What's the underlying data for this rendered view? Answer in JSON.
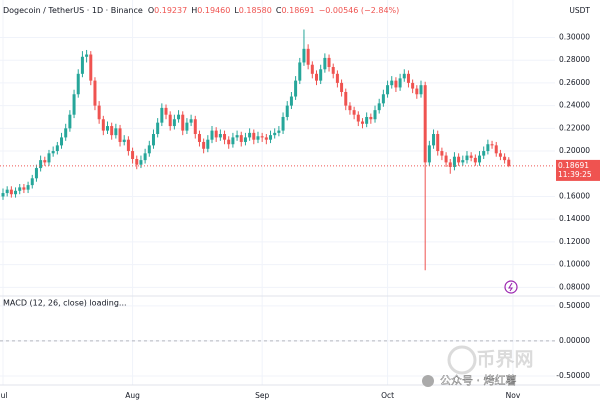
{
  "chart_data": {
    "type": "candlestick",
    "title": "Dogecoin / TetherUS · 1D · Binance",
    "quote": [
      {
        "label": "O",
        "value": "0.19237"
      },
      {
        "label": "H",
        "value": "0.19460"
      },
      {
        "label": "L",
        "value": "0.18580"
      },
      {
        "label": "C",
        "value": "0.18691"
      }
    ],
    "change": "−0.00546 (−2.84%)",
    "currency": "USDT",
    "countdown": "11:39:25",
    "up_color": "#26a69a",
    "down_color": "#ef5350",
    "categories": [
      "Jul",
      null,
      null,
      null,
      null,
      null,
      null,
      null,
      null,
      null,
      null,
      null,
      null,
      null,
      null,
      null,
      null,
      null,
      null,
      null,
      null,
      null,
      null,
      null,
      null,
      null,
      null,
      null,
      null,
      null,
      null,
      "Aug",
      null,
      null,
      null,
      null,
      null,
      null,
      null,
      null,
      null,
      null,
      null,
      null,
      null,
      null,
      null,
      null,
      null,
      null,
      null,
      null,
      null,
      null,
      null,
      null,
      null,
      null,
      null,
      null,
      null,
      null,
      "Sep",
      null,
      null,
      null,
      null,
      null,
      null,
      null,
      null,
      null,
      null,
      null,
      null,
      null,
      null,
      null,
      null,
      null,
      null,
      null,
      null,
      null,
      null,
      null,
      null,
      null,
      null,
      null,
      null,
      null,
      "Oct",
      null,
      null,
      null,
      null,
      null,
      null,
      null,
      null,
      null,
      null,
      null,
      null,
      null,
      null,
      null,
      null,
      null,
      null,
      null,
      null,
      null,
      null,
      null,
      null,
      null,
      null,
      null,
      null,
      null,
      "Nov"
    ],
    "ohlc": [
      [
        0.16,
        0.167,
        0.157,
        0.163
      ],
      [
        0.163,
        0.169,
        0.16,
        0.166
      ],
      [
        0.166,
        0.169,
        0.159,
        0.162
      ],
      [
        0.162,
        0.168,
        0.159,
        0.165
      ],
      [
        0.165,
        0.171,
        0.162,
        0.168
      ],
      [
        0.168,
        0.171,
        0.163,
        0.166
      ],
      [
        0.166,
        0.173,
        0.163,
        0.17
      ],
      [
        0.17,
        0.179,
        0.167,
        0.176
      ],
      [
        0.176,
        0.188,
        0.173,
        0.185
      ],
      [
        0.185,
        0.196,
        0.182,
        0.192
      ],
      [
        0.192,
        0.195,
        0.187,
        0.19
      ],
      [
        0.19,
        0.201,
        0.187,
        0.198
      ],
      [
        0.198,
        0.204,
        0.195,
        0.2
      ],
      [
        0.2,
        0.208,
        0.197,
        0.205
      ],
      [
        0.205,
        0.216,
        0.202,
        0.212
      ],
      [
        0.212,
        0.224,
        0.209,
        0.22
      ],
      [
        0.22,
        0.236,
        0.217,
        0.232
      ],
      [
        0.232,
        0.254,
        0.229,
        0.25
      ],
      [
        0.25,
        0.272,
        0.247,
        0.268
      ],
      [
        0.268,
        0.288,
        0.265,
        0.283
      ],
      [
        0.283,
        0.289,
        0.278,
        0.285
      ],
      [
        0.285,
        0.288,
        0.258,
        0.262
      ],
      [
        0.262,
        0.265,
        0.236,
        0.24
      ],
      [
        0.24,
        0.244,
        0.224,
        0.228
      ],
      [
        0.228,
        0.231,
        0.214,
        0.218
      ],
      [
        0.218,
        0.226,
        0.215,
        0.222
      ],
      [
        0.222,
        0.225,
        0.21,
        0.214
      ],
      [
        0.214,
        0.224,
        0.211,
        0.22
      ],
      [
        0.22,
        0.223,
        0.204,
        0.208
      ],
      [
        0.208,
        0.214,
        0.205,
        0.21
      ],
      [
        0.21,
        0.213,
        0.196,
        0.2
      ],
      [
        0.2,
        0.203,
        0.189,
        0.193
      ],
      [
        0.193,
        0.196,
        0.184,
        0.188
      ],
      [
        0.188,
        0.196,
        0.185,
        0.192
      ],
      [
        0.192,
        0.202,
        0.189,
        0.198
      ],
      [
        0.198,
        0.209,
        0.195,
        0.205
      ],
      [
        0.205,
        0.219,
        0.202,
        0.215
      ],
      [
        0.215,
        0.229,
        0.212,
        0.225
      ],
      [
        0.225,
        0.242,
        0.222,
        0.238
      ],
      [
        0.238,
        0.241,
        0.228,
        0.232
      ],
      [
        0.232,
        0.235,
        0.218,
        0.222
      ],
      [
        0.222,
        0.232,
        0.219,
        0.228
      ],
      [
        0.228,
        0.236,
        0.225,
        0.232
      ],
      [
        0.232,
        0.235,
        0.214,
        0.218
      ],
      [
        0.218,
        0.229,
        0.215,
        0.225
      ],
      [
        0.225,
        0.232,
        0.222,
        0.228
      ],
      [
        0.228,
        0.231,
        0.211,
        0.215
      ],
      [
        0.215,
        0.218,
        0.204,
        0.208
      ],
      [
        0.208,
        0.211,
        0.198,
        0.202
      ],
      [
        0.202,
        0.214,
        0.199,
        0.21
      ],
      [
        0.21,
        0.222,
        0.207,
        0.218
      ],
      [
        0.218,
        0.221,
        0.208,
        0.212
      ],
      [
        0.212,
        0.219,
        0.209,
        0.215
      ],
      [
        0.215,
        0.218,
        0.206,
        0.21
      ],
      [
        0.21,
        0.213,
        0.202,
        0.206
      ],
      [
        0.206,
        0.216,
        0.203,
        0.212
      ],
      [
        0.212,
        0.218,
        0.209,
        0.214
      ],
      [
        0.214,
        0.217,
        0.204,
        0.208
      ],
      [
        0.208,
        0.216,
        0.205,
        0.212
      ],
      [
        0.212,
        0.22,
        0.209,
        0.216
      ],
      [
        0.216,
        0.219,
        0.206,
        0.21
      ],
      [
        0.21,
        0.217,
        0.207,
        0.213
      ],
      [
        0.213,
        0.216,
        0.208,
        0.212
      ],
      [
        0.212,
        0.215,
        0.206,
        0.21
      ],
      [
        0.21,
        0.218,
        0.207,
        0.214
      ],
      [
        0.214,
        0.22,
        0.211,
        0.216
      ],
      [
        0.216,
        0.222,
        0.213,
        0.218
      ],
      [
        0.218,
        0.234,
        0.215,
        0.23
      ],
      [
        0.23,
        0.244,
        0.227,
        0.24
      ],
      [
        0.24,
        0.252,
        0.237,
        0.248
      ],
      [
        0.248,
        0.266,
        0.245,
        0.262
      ],
      [
        0.262,
        0.282,
        0.259,
        0.278
      ],
      [
        0.278,
        0.307,
        0.275,
        0.29
      ],
      [
        0.29,
        0.294,
        0.272,
        0.276
      ],
      [
        0.276,
        0.279,
        0.264,
        0.268
      ],
      [
        0.268,
        0.271,
        0.258,
        0.262
      ],
      [
        0.262,
        0.276,
        0.259,
        0.272
      ],
      [
        0.272,
        0.286,
        0.269,
        0.282
      ],
      [
        0.282,
        0.285,
        0.27,
        0.274
      ],
      [
        0.274,
        0.277,
        0.264,
        0.268
      ],
      [
        0.268,
        0.271,
        0.256,
        0.26
      ],
      [
        0.26,
        0.263,
        0.248,
        0.252
      ],
      [
        0.252,
        0.255,
        0.236,
        0.24
      ],
      [
        0.24,
        0.243,
        0.232,
        0.236
      ],
      [
        0.236,
        0.239,
        0.228,
        0.232
      ],
      [
        0.232,
        0.235,
        0.222,
        0.226
      ],
      [
        0.226,
        0.229,
        0.22,
        0.224
      ],
      [
        0.224,
        0.234,
        0.221,
        0.23
      ],
      [
        0.23,
        0.233,
        0.224,
        0.228
      ],
      [
        0.228,
        0.24,
        0.225,
        0.236
      ],
      [
        0.236,
        0.246,
        0.233,
        0.242
      ],
      [
        0.242,
        0.254,
        0.239,
        0.25
      ],
      [
        0.25,
        0.262,
        0.247,
        0.258
      ],
      [
        0.258,
        0.266,
        0.255,
        0.262
      ],
      [
        0.262,
        0.265,
        0.252,
        0.256
      ],
      [
        0.256,
        0.268,
        0.253,
        0.264
      ],
      [
        0.264,
        0.272,
        0.261,
        0.268
      ],
      [
        0.268,
        0.271,
        0.256,
        0.26
      ],
      [
        0.26,
        0.263,
        0.251,
        0.255
      ],
      [
        0.255,
        0.258,
        0.246,
        0.25
      ],
      [
        0.25,
        0.262,
        0.247,
        0.258
      ],
      [
        0.258,
        0.261,
        0.095,
        0.19
      ],
      [
        0.19,
        0.209,
        0.187,
        0.205
      ],
      [
        0.205,
        0.219,
        0.202,
        0.215
      ],
      [
        0.215,
        0.218,
        0.196,
        0.2
      ],
      [
        0.2,
        0.203,
        0.192,
        0.196
      ],
      [
        0.196,
        0.199,
        0.186,
        0.19
      ],
      [
        0.19,
        0.193,
        0.18,
        0.186
      ],
      [
        0.186,
        0.199,
        0.183,
        0.195
      ],
      [
        0.195,
        0.198,
        0.187,
        0.19
      ],
      [
        0.19,
        0.196,
        0.187,
        0.192
      ],
      [
        0.192,
        0.2,
        0.189,
        0.196
      ],
      [
        0.196,
        0.199,
        0.191,
        0.194
      ],
      [
        0.194,
        0.197,
        0.187,
        0.19
      ],
      [
        0.19,
        0.2,
        0.187,
        0.196
      ],
      [
        0.196,
        0.204,
        0.193,
        0.2
      ],
      [
        0.2,
        0.21,
        0.197,
        0.206
      ],
      [
        0.206,
        0.209,
        0.202,
        0.205
      ],
      [
        0.205,
        0.208,
        0.195,
        0.198
      ],
      [
        0.198,
        0.201,
        0.192,
        0.195
      ],
      [
        0.195,
        0.198,
        0.189,
        0.192
      ],
      [
        0.19237,
        0.1946,
        0.1858,
        0.18691
      ],
      null
    ],
    "ylim": [
      0.075,
      0.333
    ],
    "yticks": [
      {
        "value": 0.3,
        "label": "0.30000"
      },
      {
        "value": 0.28,
        "label": "0.28000"
      },
      {
        "value": 0.26,
        "label": "0.26000"
      },
      {
        "value": 0.24,
        "label": "0.24000"
      },
      {
        "value": 0.22,
        "label": "0.22000"
      },
      {
        "value": 0.2,
        "label": "0.20000"
      },
      {
        "value": 0.16,
        "label": "0.16000"
      },
      {
        "value": 0.14,
        "label": "0.14000"
      },
      {
        "value": 0.12,
        "label": "0.12000"
      },
      {
        "value": 0.1,
        "label": "0.10000"
      },
      {
        "value": 0.08,
        "label": "0.08000"
      }
    ],
    "grid": true,
    "indicator": {
      "title": "MACD (12, 26, close) loading...",
      "ylim": [
        -0.6,
        0.64
      ],
      "yticks": [
        {
          "value": 0.5,
          "label": "0.50000"
        },
        {
          "value": 0,
          "label": "0.00000"
        },
        {
          "value": -0.5,
          "label": "-0.50000"
        }
      ],
      "zero_line": 0
    }
  },
  "watermark": {
    "logo": "币界网",
    "text": "公众号 · 烤红薯"
  }
}
